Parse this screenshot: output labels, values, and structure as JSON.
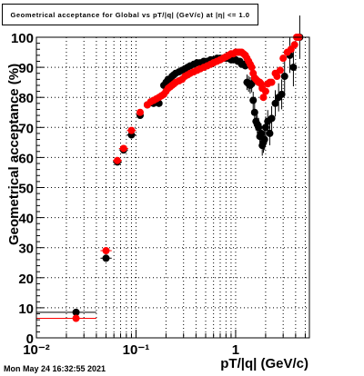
{
  "title": "Geometrical acceptance for Global vs pT/|q| (GeV/c) at |η| <= 1.0",
  "timestamp": "Mon May 24 16:32:55 2021",
  "chart_data": {
    "type": "scatter",
    "title": "Geometrical acceptance for Global vs pT/|q| (GeV/c) at |η| <= 1.0",
    "xlabel": "pT/|q| (GeV/c)",
    "ylabel": "Geometrical acceptance (%)",
    "xscale": "log",
    "xlim": [
      0.01,
      5.5
    ],
    "ylim": [
      0,
      100
    ],
    "xticks": [
      "10⁻²",
      "10⁻¹",
      "1"
    ],
    "yticks": [
      0,
      10,
      20,
      30,
      40,
      50,
      60,
      70,
      80,
      90,
      100
    ],
    "grid": true,
    "series": [
      {
        "color": "#000000",
        "xerr_binned": true,
        "points": [
          [
            0.025,
            8.5
          ],
          [
            0.05,
            26.5
          ],
          [
            0.065,
            58.5
          ],
          [
            0.075,
            62.5
          ],
          [
            0.09,
            67.5
          ],
          [
            0.11,
            74
          ],
          [
            0.13,
            77.5
          ],
          [
            0.15,
            78
          ],
          [
            0.17,
            78
          ],
          [
            0.19,
            84
          ],
          [
            0.2,
            85
          ],
          [
            0.21,
            86
          ],
          [
            0.22,
            86
          ],
          [
            0.23,
            87
          ],
          [
            0.24,
            87.5
          ],
          [
            0.25,
            88
          ],
          [
            0.27,
            88.5
          ],
          [
            0.29,
            89
          ],
          [
            0.31,
            89.5
          ],
          [
            0.33,
            90
          ],
          [
            0.35,
            90.5
          ],
          [
            0.38,
            91
          ],
          [
            0.41,
            91.5
          ],
          [
            0.44,
            91.5
          ],
          [
            0.48,
            92
          ],
          [
            0.52,
            92
          ],
          [
            0.56,
            92.5
          ],
          [
            0.6,
            92.5
          ],
          [
            0.65,
            93
          ],
          [
            0.7,
            93
          ],
          [
            0.75,
            93
          ],
          [
            0.8,
            93
          ],
          [
            0.85,
            93
          ],
          [
            0.9,
            92.5
          ],
          [
            0.95,
            92.5
          ],
          [
            1.0,
            92.5
          ],
          [
            1.05,
            92
          ],
          [
            1.1,
            92
          ],
          [
            1.15,
            91
          ],
          [
            1.2,
            91
          ],
          [
            1.25,
            90.5
          ],
          [
            1.3,
            85
          ],
          [
            1.35,
            84.5
          ],
          [
            1.4,
            84
          ],
          [
            1.45,
            84.5
          ],
          [
            1.5,
            79
          ],
          [
            1.55,
            75
          ],
          [
            1.6,
            72
          ],
          [
            1.65,
            71
          ],
          [
            1.7,
            70
          ],
          [
            1.75,
            67
          ],
          [
            1.8,
            68
          ],
          [
            1.85,
            64
          ],
          [
            1.9,
            65
          ],
          [
            1.95,
            66
          ],
          [
            2.0,
            70
          ],
          [
            2.1,
            72
          ],
          [
            2.2,
            68
          ],
          [
            2.3,
            73
          ],
          [
            2.5,
            78
          ],
          [
            2.7,
            80
          ],
          [
            2.9,
            81
          ],
          [
            3.1,
            87
          ],
          [
            3.5,
            94
          ],
          [
            3.8,
            90
          ],
          [
            4.4,
            100
          ]
        ]
      },
      {
        "color": "#ff0000",
        "xerr_binned": true,
        "points": [
          [
            0.025,
            6.5
          ],
          [
            0.05,
            29
          ],
          [
            0.065,
            59
          ],
          [
            0.075,
            63
          ],
          [
            0.09,
            69
          ],
          [
            0.11,
            75
          ],
          [
            0.13,
            77.5
          ],
          [
            0.14,
            78.5
          ],
          [
            0.15,
            79
          ],
          [
            0.16,
            79.5
          ],
          [
            0.17,
            80
          ],
          [
            0.18,
            80.5
          ],
          [
            0.19,
            81
          ],
          [
            0.2,
            82
          ],
          [
            0.21,
            83
          ],
          [
            0.22,
            83.5
          ],
          [
            0.23,
            84
          ],
          [
            0.24,
            84.5
          ],
          [
            0.25,
            85
          ],
          [
            0.27,
            85.5
          ],
          [
            0.29,
            86
          ],
          [
            0.31,
            87
          ],
          [
            0.33,
            87.5
          ],
          [
            0.35,
            88
          ],
          [
            0.38,
            88.5
          ],
          [
            0.41,
            89
          ],
          [
            0.44,
            89.5
          ],
          [
            0.48,
            90
          ],
          [
            0.52,
            90.5
          ],
          [
            0.56,
            91
          ],
          [
            0.6,
            91.5
          ],
          [
            0.65,
            92
          ],
          [
            0.7,
            92.5
          ],
          [
            0.75,
            93
          ],
          [
            0.8,
            93.5
          ],
          [
            0.85,
            94
          ],
          [
            0.9,
            94.5
          ],
          [
            0.95,
            94.5
          ],
          [
            1.0,
            95
          ],
          [
            1.05,
            95
          ],
          [
            1.1,
            95
          ],
          [
            1.15,
            95
          ],
          [
            1.2,
            94.5
          ],
          [
            1.25,
            94
          ],
          [
            1.3,
            93
          ],
          [
            1.35,
            92
          ],
          [
            1.4,
            91
          ],
          [
            1.45,
            90
          ],
          [
            1.5,
            88
          ],
          [
            1.55,
            86.5
          ],
          [
            1.6,
            86
          ],
          [
            1.65,
            85.5
          ],
          [
            1.7,
            85
          ],
          [
            1.75,
            85
          ],
          [
            1.8,
            84.5
          ],
          [
            1.85,
            83
          ],
          [
            1.9,
            80
          ],
          [
            2.0,
            82
          ],
          [
            2.1,
            84.5
          ],
          [
            2.2,
            85
          ],
          [
            2.3,
            85
          ],
          [
            2.5,
            88
          ],
          [
            2.6,
            87
          ],
          [
            2.8,
            89
          ],
          [
            3.0,
            93
          ],
          [
            3.3,
            95
          ],
          [
            3.6,
            96
          ],
          [
            3.9,
            97.5
          ],
          [
            4.1,
            100
          ],
          [
            4.3,
            100
          ]
        ]
      }
    ]
  }
}
